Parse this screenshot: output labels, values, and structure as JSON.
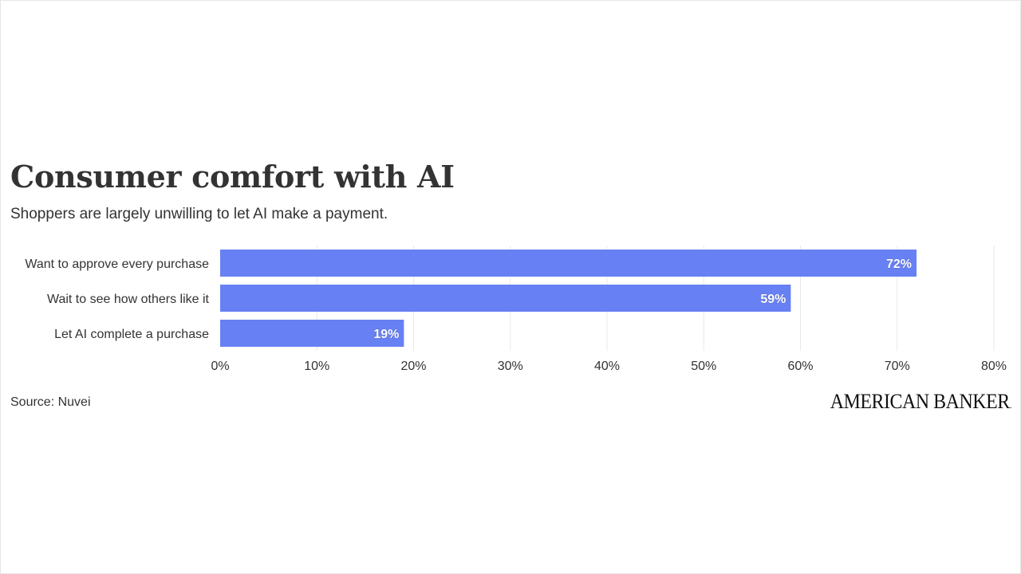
{
  "header": {
    "title": "Consumer comfort with AI",
    "subtitle": "Shoppers are largely unwilling to let AI make a payment."
  },
  "footer": {
    "source": "Source: Nuvei",
    "logo_text": "AMERICAN BANKER"
  },
  "colors": {
    "bar": "#6780f3",
    "grid": "#e9e9e9",
    "label_text": "#333333",
    "value_text": "#ffffff"
  },
  "chart_data": {
    "type": "bar",
    "orientation": "horizontal",
    "categories": [
      "Want to approve every purchase",
      "Wait to see how others like it",
      "Let AI complete a purchase"
    ],
    "values": [
      72,
      59,
      19
    ],
    "value_labels": [
      "72%",
      "59%",
      "19%"
    ],
    "xlim": [
      0,
      80
    ],
    "x_ticks": [
      0,
      10,
      20,
      30,
      40,
      50,
      60,
      70,
      80
    ],
    "x_tick_labels": [
      "0%",
      "10%",
      "20%",
      "30%",
      "40%",
      "50%",
      "60%",
      "70%",
      "80%"
    ],
    "grid": true,
    "legend": false
  }
}
